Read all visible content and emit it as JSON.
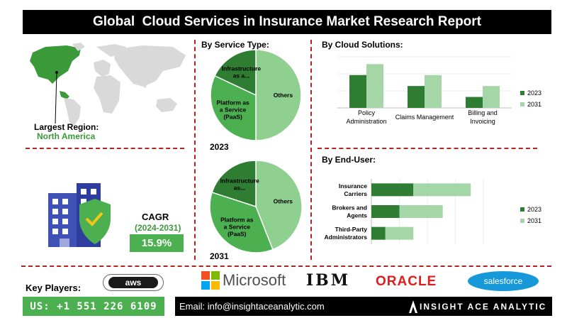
{
  "title": "Global  Cloud Services in Insurance Market Research Report",
  "region": {
    "label": "Largest Region:",
    "value": "North America"
  },
  "cagr": {
    "label": "CAGR",
    "period": "(2024-2031)",
    "value": "15.9%"
  },
  "sections": {
    "service": "By Service Type:",
    "cloud": "By Cloud Solutions:",
    "enduser": "By End-User:"
  },
  "chart_data": [
    {
      "type": "pie",
      "title": "By Service Type:",
      "year": "2023",
      "slices": [
        {
          "label": "Others",
          "value": 50,
          "color": "#8fcf8f"
        },
        {
          "label": "Platform as a Service (PaaS)",
          "value": 32,
          "color": "#4caf50"
        },
        {
          "label": "Infrastructure as a...",
          "value": 18,
          "color": "#2e7d32"
        }
      ]
    },
    {
      "type": "pie",
      "title": "By Service Type:",
      "year": "2031",
      "slices": [
        {
          "label": "Others",
          "value": 44,
          "color": "#8fcf8f"
        },
        {
          "label": "Platform as a Service (PaaS)",
          "value": 36,
          "color": "#4caf50"
        },
        {
          "label": "Infrastructure as...",
          "value": 20,
          "color": "#2e7d32"
        }
      ]
    },
    {
      "type": "bar",
      "title": "By Cloud Solutions:",
      "categories": [
        "Policy Administration",
        "Claims Management",
        "Billing and Invoicing"
      ],
      "series": [
        {
          "name": "2023",
          "values": [
            45,
            30,
            15
          ],
          "color": "#2e7d32"
        },
        {
          "name": "2031",
          "values": [
            60,
            45,
            30
          ],
          "color": "#a5d6a7"
        }
      ],
      "ylim": [
        0,
        70
      ]
    },
    {
      "type": "bar",
      "orientation": "horizontal",
      "stacked": true,
      "title": "By End-User:",
      "categories": [
        "Insurance Carriers",
        "Brokers and Agents",
        "Third-Party Administrators"
      ],
      "series": [
        {
          "name": "2023",
          "values": [
            30,
            20,
            10
          ],
          "color": "#2e7d32"
        },
        {
          "name": "2031",
          "values": [
            41,
            31,
            20
          ],
          "color": "#a5d6a7"
        }
      ],
      "xlim": [
        0,
        80
      ]
    }
  ],
  "key_players": {
    "label": "Key Players:",
    "items": [
      "aws",
      "Microsoft",
      "IBM",
      "ORACLE",
      "salesforce"
    ]
  },
  "footer": {
    "phone": "US: +1 551 226 6109",
    "email": "Email: info@insightaceanalytic.com",
    "brand": "INSIGHT ACE ANALYTIC"
  }
}
